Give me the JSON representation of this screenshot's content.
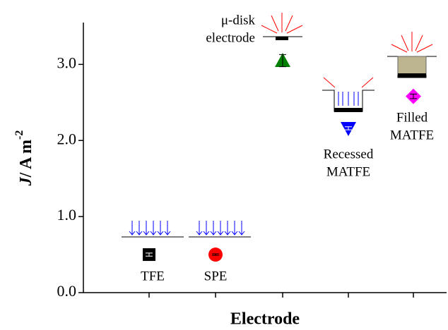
{
  "chart_data": {
    "type": "scatter",
    "xlabel": "Electrode",
    "ylabel_parts": [
      "J",
      "/ A m",
      "-2"
    ],
    "categories": [
      [
        "TFE"
      ],
      [
        "SPE"
      ],
      [
        "μ-disk",
        "electrode"
      ],
      [
        "Recessed",
        "MATFE"
      ],
      [
        "Filled",
        "MATFE"
      ]
    ],
    "values": [
      0.5,
      0.5,
      3.05,
      2.16,
      2.58
    ],
    "errors": [
      0.02,
      0.01,
      0.08,
      0.02,
      0.03
    ],
    "markers": [
      "square",
      "circle",
      "triangle-up",
      "triangle-down",
      "diamond"
    ],
    "colors": [
      "#000000",
      "#ff0000",
      "#008000",
      "#0000ff",
      "#ff00ff"
    ],
    "ylim": [
      0,
      3.55
    ],
    "yticks": [
      {
        "value": 0,
        "label": "0.0"
      },
      {
        "value": 1,
        "label": "1.0"
      },
      {
        "value": 2,
        "label": "2.0"
      },
      {
        "value": 3,
        "label": "3.0"
      }
    ]
  }
}
